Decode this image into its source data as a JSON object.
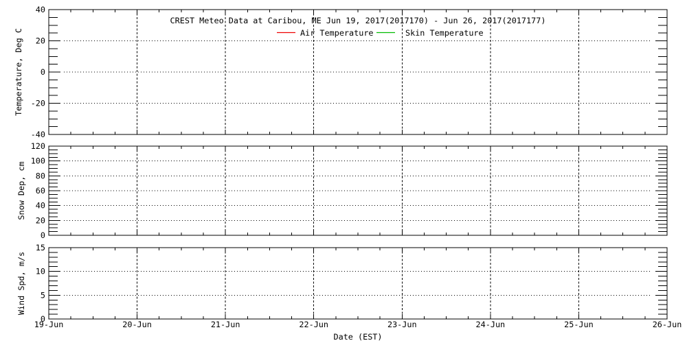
{
  "colors": {
    "background": "#ffffff",
    "axis": "#000000",
    "air_temperature": "#ee0000",
    "skin_temperature": "#00bb00"
  },
  "chart_data": {
    "type": "line",
    "title": "CREST Meteo Data at Caribou, ME   Jun 19, 2017(2017170) - Jun 26, 2017(2017177)",
    "xlabel": "Date (EST)",
    "x_axis": {
      "tick_labels": [
        "19-Jun",
        "20-Jun",
        "21-Jun",
        "22-Jun",
        "23-Jun",
        "24-Jun",
        "25-Jun",
        "26-Jun"
      ],
      "range_days": [
        0,
        7
      ],
      "minor_ticks_per_day": 4,
      "gridline_style": "dashed vertical at each day"
    },
    "legend": {
      "position": "top-inside",
      "entries": [
        {
          "label": "Air Temperature",
          "color": "#ee0000"
        },
        {
          "label": "Skin Temperature",
          "color": "#00bb00"
        }
      ]
    },
    "panels": [
      {
        "ylabel": "Temperature, Deg C",
        "ylim": [
          -40,
          40
        ],
        "yticks": [
          -40,
          -20,
          0,
          20,
          40
        ],
        "y_minor_step": 5,
        "gridlines": "dotted horizontal at interior major ticks",
        "series": [
          {
            "name": "Air Temperature",
            "color": "#ee0000",
            "x": [],
            "values": []
          },
          {
            "name": "Skin Temperature",
            "color": "#00bb00",
            "x": [],
            "values": []
          }
        ]
      },
      {
        "ylabel": "Snow Dep, cm",
        "ylim": [
          0,
          120
        ],
        "yticks": [
          0,
          20,
          40,
          60,
          80,
          100,
          120
        ],
        "y_minor_step": 5,
        "gridlines": "dotted horizontal at interior major ticks",
        "series": []
      },
      {
        "ylabel": "Wind Spd, m/s",
        "ylim": [
          0,
          15
        ],
        "yticks": [
          0,
          5,
          10,
          15
        ],
        "y_minor_step": 1,
        "gridlines": "dotted horizontal at interior major ticks",
        "series": []
      }
    ],
    "plotted_data_note": "All three panels are empty - no data curves are drawn"
  }
}
